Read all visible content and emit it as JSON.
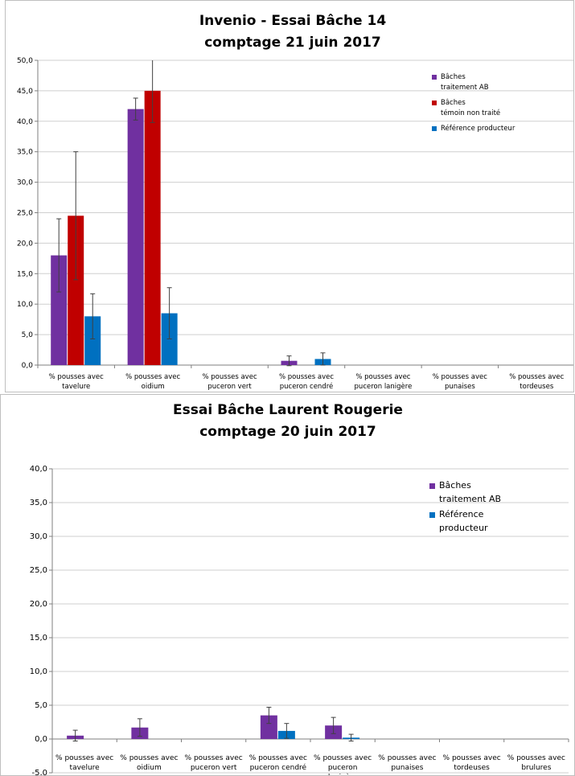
{
  "chart_data": [
    {
      "type": "bar",
      "title": "Invenio - Essai Bâche 14",
      "subtitle": "comptage 21 juin 2017",
      "xlabel": "",
      "ylabel": "",
      "ylim": [
        0,
        50
      ],
      "yticks": [
        "0,0",
        "5,0",
        "10,0",
        "15,0",
        "20,0",
        "25,0",
        "30,0",
        "35,0",
        "40,0",
        "45,0",
        "50,0"
      ],
      "grid": true,
      "legend_position": "top-right",
      "categories": [
        [
          "% pousses avec",
          "tavelure"
        ],
        [
          "% pousses avec",
          "oidium"
        ],
        [
          "% pousses avec",
          "puceron vert"
        ],
        [
          "% pousses avec",
          "puceron cendré"
        ],
        [
          "% pousses avec",
          "puceron lanigère"
        ],
        [
          "% pousses avec",
          "punaises"
        ],
        [
          "% pousses avec",
          "tordeuses"
        ]
      ],
      "series": [
        {
          "name": [
            "Bâches",
            "traitement AB"
          ],
          "color": "#7030a0",
          "values": [
            18.0,
            42.0,
            0,
            0.7,
            0,
            0,
            0
          ],
          "errors": [
            6.0,
            1.8,
            0,
            0.8,
            0,
            0,
            0
          ]
        },
        {
          "name": [
            "Bâches",
            "témoin non traité"
          ],
          "color": "#c00000",
          "values": [
            24.5,
            45.0,
            0,
            0,
            0,
            0,
            0
          ],
          "errors": [
            10.5,
            5.2,
            0,
            0,
            0,
            0,
            0
          ]
        },
        {
          "name": [
            "Référence producteur"
          ],
          "color": "#0070c0",
          "values": [
            8.0,
            8.5,
            0,
            1.0,
            0,
            0,
            0
          ],
          "errors": [
            3.7,
            4.2,
            0,
            1.0,
            0,
            0,
            0
          ]
        }
      ]
    },
    {
      "type": "bar",
      "title": "Essai Bâche Laurent Rougerie",
      "subtitle": "comptage 20 juin 2017",
      "xlabel": "",
      "ylabel": "",
      "ylim": [
        -5,
        40
      ],
      "yticks": [
        "-5,0",
        "0,0",
        "5,0",
        "10,0",
        "15,0",
        "20,0",
        "25,0",
        "30,0",
        "35,0",
        "40,0"
      ],
      "grid": true,
      "legend_position": "top-right",
      "categories": [
        [
          "% pousses avec",
          "tavelure"
        ],
        [
          "% pousses avec",
          "oidium"
        ],
        [
          "% pousses avec",
          "puceron vert"
        ],
        [
          "% pousses avec",
          "puceron cendré"
        ],
        [
          "% pousses avec",
          "puceron",
          "lanigère"
        ],
        [
          "% pousses avec",
          "punaises"
        ],
        [
          "% pousses avec",
          "tordeuses"
        ],
        [
          "% pousses avec",
          "brulures"
        ]
      ],
      "series": [
        {
          "name": [
            "Bâches",
            "traitement AB"
          ],
          "color": "#7030a0",
          "values": [
            0.5,
            1.7,
            0,
            3.5,
            2.0,
            0,
            0,
            0
          ],
          "errors": [
            0.8,
            1.3,
            0,
            1.2,
            1.2,
            0,
            0,
            0
          ]
        },
        {
          "name": [
            "Référence",
            "producteur"
          ],
          "color": "#0070c0",
          "values": [
            0,
            0,
            0,
            1.2,
            0.2,
            0,
            0,
            0
          ],
          "errors": [
            0,
            0,
            0,
            1.1,
            0.5,
            0,
            0,
            0
          ]
        }
      ]
    }
  ]
}
